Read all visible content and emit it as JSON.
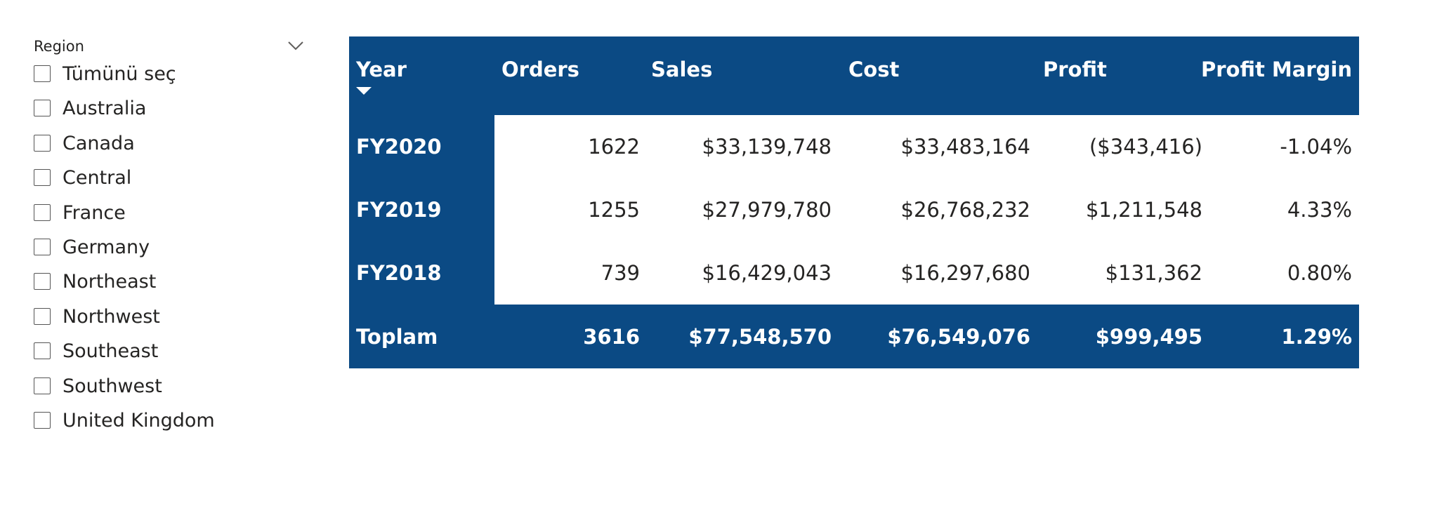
{
  "slicer": {
    "title": "Region",
    "items": [
      {
        "label": "Tümünü seç",
        "checked": false
      },
      {
        "label": "Australia",
        "checked": false
      },
      {
        "label": "Canada",
        "checked": false
      },
      {
        "label": "Central",
        "checked": false
      },
      {
        "label": "France",
        "checked": false
      },
      {
        "label": "Germany",
        "checked": false
      },
      {
        "label": "Northeast",
        "checked": false
      },
      {
        "label": "Northwest",
        "checked": false
      },
      {
        "label": "Southeast",
        "checked": false
      },
      {
        "label": "Southwest",
        "checked": false
      },
      {
        "label": "United Kingdom",
        "checked": false
      }
    ],
    "dropdown_icon": "chevron-down-icon"
  },
  "table": {
    "columns": [
      "Year",
      "Orders",
      "Sales",
      "Cost",
      "Profit",
      "Profit Margin"
    ],
    "sort_icon": "sort-descending-icon",
    "rows": [
      {
        "year": "FY2020",
        "orders": "1622",
        "sales": "$33,139,748",
        "cost": "$33,483,164",
        "profit": "($343,416)",
        "margin": "-1.04%"
      },
      {
        "year": "FY2019",
        "orders": "1255",
        "sales": "$27,979,780",
        "cost": "$26,768,232",
        "profit": "$1,211,548",
        "margin": "4.33%"
      },
      {
        "year": "FY2018",
        "orders": "739",
        "sales": "$16,429,043",
        "cost": "$16,297,680",
        "profit": "$131,362",
        "margin": "0.80%"
      }
    ],
    "total": {
      "year": "Toplam",
      "orders": "3616",
      "sales": "$77,548,570",
      "cost": "$76,549,076",
      "profit": "$999,495",
      "margin": "1.29%"
    }
  },
  "colors": {
    "header_bg": "#0b4a84",
    "header_text": "#ffffff",
    "body_bg": "#ffffff",
    "body_text": "#252423"
  }
}
